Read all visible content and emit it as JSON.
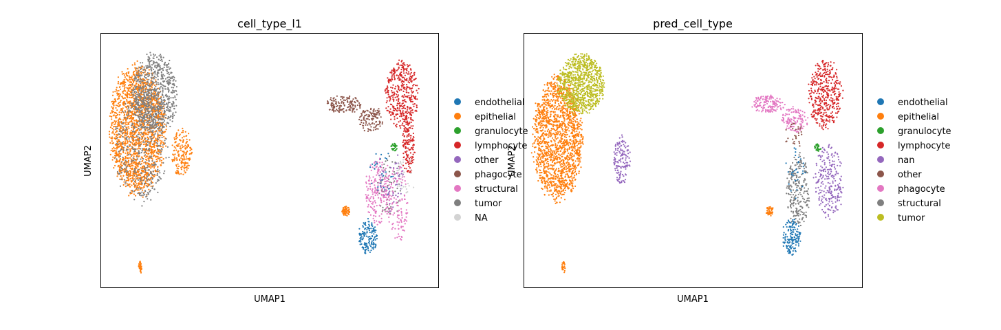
{
  "chart_data": [
    {
      "type": "scatter",
      "title": "cell_type_l1",
      "xlabel": "UMAP1",
      "ylabel": "UMAP2",
      "xticks": [],
      "yticks": [],
      "legend_position": "right",
      "legend": [
        {
          "label": "endothelial",
          "color": "#1f77b4"
        },
        {
          "label": "epithelial",
          "color": "#ff7f0e"
        },
        {
          "label": "granulocyte",
          "color": "#2ca02c"
        },
        {
          "label": "lymphocyte",
          "color": "#d62728"
        },
        {
          "label": "other",
          "color": "#9467bd"
        },
        {
          "label": "phagocyte",
          "color": "#8c564b"
        },
        {
          "label": "structural",
          "color": "#e377c2"
        },
        {
          "label": "tumor",
          "color": "#7f7f7f"
        },
        {
          "label": "NA",
          "color": "#d3d3d3"
        }
      ],
      "series": [
        {
          "name": "epithelial",
          "color": "#ff7f0e",
          "clusters": [
            {
              "cx": 0.11,
              "cy": 0.62,
              "rx": 0.085,
              "ry": 0.26,
              "weight": 0.62
            },
            {
              "cx": 0.24,
              "cy": 0.53,
              "rx": 0.03,
              "ry": 0.1,
              "weight": 0.06
            },
            {
              "cx": 0.725,
              "cy": 0.3,
              "rx": 0.012,
              "ry": 0.02,
              "weight": 0.02
            },
            {
              "cx": 0.118,
              "cy": 0.08,
              "rx": 0.005,
              "ry": 0.025,
              "weight": 0.01
            }
          ]
        },
        {
          "name": "tumor",
          "color": "#7f7f7f",
          "clusters": [
            {
              "cx": 0.16,
              "cy": 0.76,
              "rx": 0.07,
              "ry": 0.16,
              "weight": 0.25
            },
            {
              "cx": 0.12,
              "cy": 0.55,
              "rx": 0.08,
              "ry": 0.22,
              "weight": 0.15
            },
            {
              "cx": 0.855,
              "cy": 0.4,
              "rx": 0.04,
              "ry": 0.12,
              "weight": 0.02
            }
          ]
        },
        {
          "name": "lymphocyte",
          "color": "#d62728",
          "clusters": [
            {
              "cx": 0.89,
              "cy": 0.76,
              "rx": 0.05,
              "ry": 0.14,
              "weight": 0.14
            },
            {
              "cx": 0.91,
              "cy": 0.55,
              "rx": 0.02,
              "ry": 0.11,
              "weight": 0.05
            }
          ]
        },
        {
          "name": "phagocyte",
          "color": "#8c564b",
          "clusters": [
            {
              "cx": 0.72,
              "cy": 0.72,
              "rx": 0.055,
              "ry": 0.035,
              "weight": 0.05
            },
            {
              "cx": 0.8,
              "cy": 0.66,
              "rx": 0.04,
              "ry": 0.05,
              "weight": 0.04
            }
          ]
        },
        {
          "name": "structural",
          "color": "#e377c2",
          "clusters": [
            {
              "cx": 0.82,
              "cy": 0.38,
              "rx": 0.04,
              "ry": 0.14,
              "weight": 0.07
            },
            {
              "cx": 0.88,
              "cy": 0.33,
              "rx": 0.03,
              "ry": 0.16,
              "weight": 0.04
            }
          ]
        },
        {
          "name": "endothelial",
          "color": "#1f77b4",
          "clusters": [
            {
              "cx": 0.79,
              "cy": 0.2,
              "rx": 0.028,
              "ry": 0.07,
              "weight": 0.05
            },
            {
              "cx": 0.83,
              "cy": 0.45,
              "rx": 0.04,
              "ry": 0.1,
              "weight": 0.01
            }
          ]
        },
        {
          "name": "other",
          "color": "#9467bd",
          "clusters": [
            {
              "cx": 0.86,
              "cy": 0.42,
              "rx": 0.04,
              "ry": 0.12,
              "weight": 0.015
            }
          ]
        },
        {
          "name": "granulocyte",
          "color": "#2ca02c",
          "clusters": [
            {
              "cx": 0.868,
              "cy": 0.55,
              "rx": 0.01,
              "ry": 0.015,
              "weight": 0.01
            }
          ]
        },
        {
          "name": "NA",
          "color": "#d3d3d3",
          "clusters": [
            {
              "cx": 0.9,
              "cy": 0.44,
              "rx": 0.03,
              "ry": 0.08,
              "weight": 0.01
            }
          ]
        }
      ]
    },
    {
      "type": "scatter",
      "title": "pred_cell_type",
      "xlabel": "UMAP1",
      "ylabel": "UMAP2",
      "xticks": [],
      "yticks": [],
      "legend_position": "right",
      "legend": [
        {
          "label": "endothelial",
          "color": "#1f77b4"
        },
        {
          "label": "epithelial",
          "color": "#ff7f0e"
        },
        {
          "label": "granulocyte",
          "color": "#2ca02c"
        },
        {
          "label": "lymphocyte",
          "color": "#d62728"
        },
        {
          "label": "nan",
          "color": "#9467bd"
        },
        {
          "label": "other",
          "color": "#8c564b"
        },
        {
          "label": "phagocyte",
          "color": "#e377c2"
        },
        {
          "label": "structural",
          "color": "#7f7f7f"
        },
        {
          "label": "tumor",
          "color": "#bcbd22"
        }
      ],
      "series": [
        {
          "name": "epithelial",
          "color": "#ff7f0e",
          "clusters": [
            {
              "cx": 0.1,
              "cy": 0.58,
              "rx": 0.075,
              "ry": 0.25,
              "weight": 0.55
            },
            {
              "cx": 0.725,
              "cy": 0.3,
              "rx": 0.012,
              "ry": 0.02,
              "weight": 0.015
            },
            {
              "cx": 0.118,
              "cy": 0.08,
              "rx": 0.005,
              "ry": 0.025,
              "weight": 0.01
            }
          ]
        },
        {
          "name": "tumor",
          "color": "#bcbd22",
          "clusters": [
            {
              "cx": 0.17,
              "cy": 0.8,
              "rx": 0.07,
              "ry": 0.12,
              "weight": 0.3
            }
          ]
        },
        {
          "name": "nan",
          "color": "#9467bd",
          "clusters": [
            {
              "cx": 0.29,
              "cy": 0.5,
              "rx": 0.025,
              "ry": 0.1,
              "weight": 0.05
            },
            {
              "cx": 0.9,
              "cy": 0.42,
              "rx": 0.045,
              "ry": 0.15,
              "weight": 0.08
            }
          ]
        },
        {
          "name": "lymphocyte",
          "color": "#d62728",
          "clusters": [
            {
              "cx": 0.89,
              "cy": 0.76,
              "rx": 0.05,
              "ry": 0.14,
              "weight": 0.14
            }
          ]
        },
        {
          "name": "phagocyte",
          "color": "#e377c2",
          "clusters": [
            {
              "cx": 0.72,
              "cy": 0.72,
              "rx": 0.05,
              "ry": 0.035,
              "weight": 0.05
            },
            {
              "cx": 0.8,
              "cy": 0.66,
              "rx": 0.04,
              "ry": 0.05,
              "weight": 0.04
            }
          ]
        },
        {
          "name": "structural",
          "color": "#7f7f7f",
          "clusters": [
            {
              "cx": 0.81,
              "cy": 0.38,
              "rx": 0.035,
              "ry": 0.15,
              "weight": 0.08
            }
          ]
        },
        {
          "name": "endothelial",
          "color": "#1f77b4",
          "clusters": [
            {
              "cx": 0.79,
              "cy": 0.2,
              "rx": 0.028,
              "ry": 0.07,
              "weight": 0.05
            },
            {
              "cx": 0.8,
              "cy": 0.45,
              "rx": 0.03,
              "ry": 0.1,
              "weight": 0.01
            }
          ]
        },
        {
          "name": "other",
          "color": "#8c564b",
          "clusters": [
            {
              "cx": 0.8,
              "cy": 0.6,
              "rx": 0.03,
              "ry": 0.05,
              "weight": 0.01
            }
          ]
        },
        {
          "name": "granulocyte",
          "color": "#2ca02c",
          "clusters": [
            {
              "cx": 0.868,
              "cy": 0.55,
              "rx": 0.01,
              "ry": 0.015,
              "weight": 0.01
            }
          ]
        }
      ]
    }
  ]
}
